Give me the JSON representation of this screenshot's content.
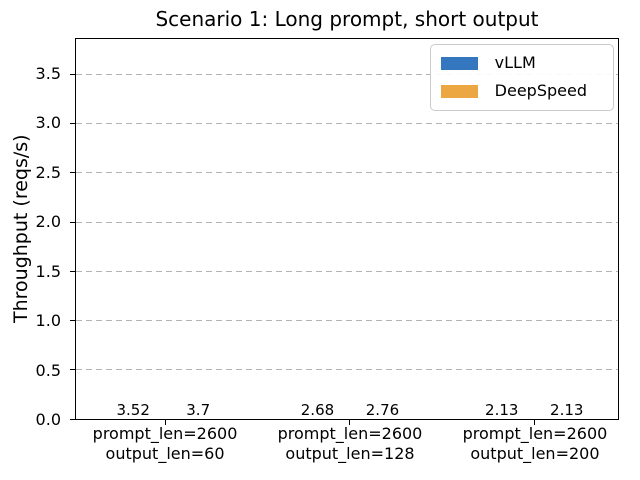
{
  "chart_data": {
    "type": "bar",
    "title": "Scenario 1: Long prompt, short output",
    "xlabel": "",
    "ylabel": "Throughput (reqs/s)",
    "categories": [
      "prompt_len=2600\noutput_len=60",
      "prompt_len=2600\noutput_len=128",
      "prompt_len=2600\noutput_len=200"
    ],
    "series": [
      {
        "name": "vLLM",
        "color": "#3477bf",
        "values": [
          3.52,
          2.68,
          2.13
        ],
        "labels": [
          "3.52",
          "2.68",
          "2.13"
        ]
      },
      {
        "name": "DeepSpeed",
        "color": "#eca743",
        "values": [
          3.7,
          2.76,
          2.13
        ],
        "labels": [
          "3.7",
          "2.76",
          "2.13"
        ]
      }
    ],
    "ylim": [
      0,
      3.86
    ],
    "yticks": [
      0.0,
      0.5,
      1.0,
      1.5,
      2.0,
      2.5,
      3.0,
      3.5
    ],
    "ytick_labels": [
      "0.0",
      "0.5",
      "1.0",
      "1.5",
      "2.0",
      "2.5",
      "3.0",
      "3.5"
    ],
    "grid": "horizontal dashed, drawn above bars",
    "legend_position": "upper right"
  },
  "colors": {
    "background": "#ffffff",
    "spine": "#000000",
    "gridline": "#b3b3b3",
    "legend_border": "#cbcbcb",
    "vllm_blue": "#3477bf",
    "deepspeed_orange": "#eca743"
  }
}
